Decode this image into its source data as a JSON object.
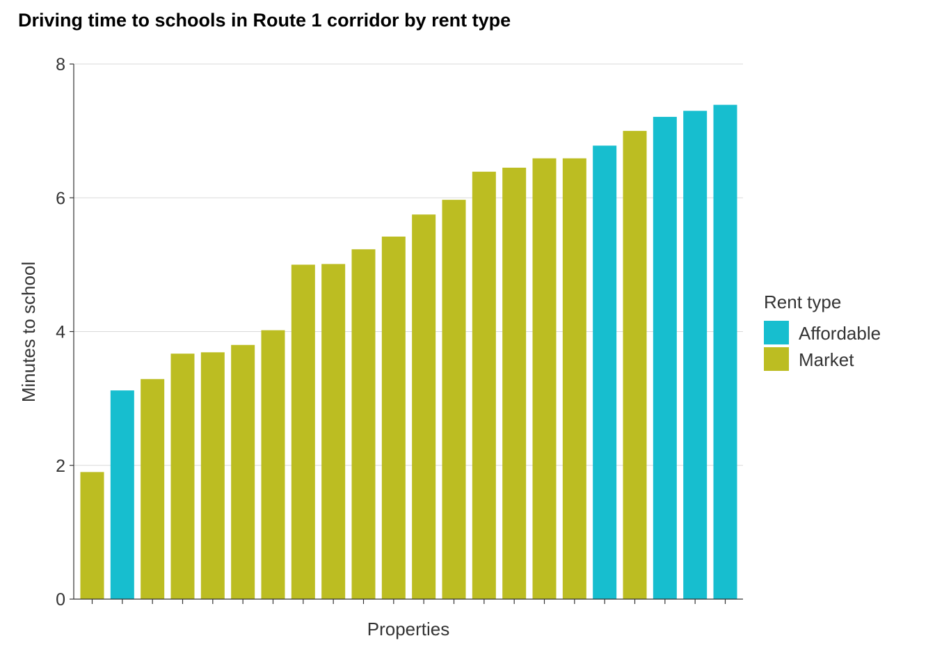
{
  "chart_data": {
    "type": "bar",
    "title": "Driving time to schools in Route 1 corridor by rent type",
    "xlabel": "Properties",
    "ylabel": "Minutes to school",
    "ylim": [
      0,
      8
    ],
    "yticks": [
      "0",
      "2",
      "4",
      "6",
      "8"
    ],
    "grid": "horizontal",
    "legend": {
      "title": "Rent type",
      "position": "right",
      "entries": [
        {
          "name": "Affordable",
          "color": "#17BECF"
        },
        {
          "name": "Market",
          "color": "#BCBD22"
        }
      ]
    },
    "bars": [
      {
        "value": 1.9,
        "type": "Market"
      },
      {
        "value": 3.12,
        "type": "Affordable"
      },
      {
        "value": 3.29,
        "type": "Market"
      },
      {
        "value": 3.67,
        "type": "Market"
      },
      {
        "value": 3.69,
        "type": "Market"
      },
      {
        "value": 3.8,
        "type": "Market"
      },
      {
        "value": 4.02,
        "type": "Market"
      },
      {
        "value": 5.0,
        "type": "Market"
      },
      {
        "value": 5.01,
        "type": "Market"
      },
      {
        "value": 5.23,
        "type": "Market"
      },
      {
        "value": 5.42,
        "type": "Market"
      },
      {
        "value": 5.75,
        "type": "Market"
      },
      {
        "value": 5.97,
        "type": "Market"
      },
      {
        "value": 6.39,
        "type": "Market"
      },
      {
        "value": 6.45,
        "type": "Market"
      },
      {
        "value": 6.59,
        "type": "Market"
      },
      {
        "value": 6.59,
        "type": "Market"
      },
      {
        "value": 6.78,
        "type": "Affordable"
      },
      {
        "value": 7.0,
        "type": "Market"
      },
      {
        "value": 7.21,
        "type": "Affordable"
      },
      {
        "value": 7.3,
        "type": "Affordable"
      },
      {
        "value": 7.39,
        "type": "Affordable"
      }
    ]
  }
}
